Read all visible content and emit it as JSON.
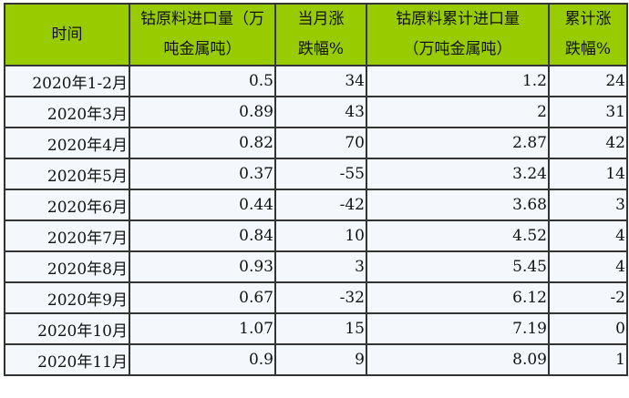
{
  "headers": [
    {
      "l1": "时间",
      "l2": ""
    },
    {
      "l1": "钴原料进口量（万",
      "l2": "吨金属吨）"
    },
    {
      "l1": "当月涨",
      "l2": "跌幅%"
    },
    {
      "l1": "钴原料累计进口量",
      "l2": "（万吨金属吨）"
    },
    {
      "l1": "累计涨",
      "l2": "跌幅%"
    }
  ],
  "rows": [
    [
      "2020年1-2月",
      "0.5",
      "34",
      "1.2",
      "24"
    ],
    [
      "2020年3月",
      "0.89",
      "43",
      "2",
      "31"
    ],
    [
      "2020年4月",
      "0.82",
      "70",
      "2.87",
      "42"
    ],
    [
      "2020年5月",
      "0.37",
      "-55",
      "3.24",
      "14"
    ],
    [
      "2020年6月",
      "0.44",
      "-42",
      "3.68",
      "3"
    ],
    [
      "2020年7月",
      "0.84",
      "10",
      "4.52",
      "4"
    ],
    [
      "2020年8月",
      "0.93",
      "3",
      "5.45",
      "4"
    ],
    [
      "2020年9月",
      "0.67",
      "-32",
      "6.12",
      "-2"
    ],
    [
      "2020年10月",
      "1.07",
      "15",
      "7.19",
      "0"
    ],
    [
      "2020年11月",
      "0.9",
      "9",
      "8.09",
      "1"
    ]
  ]
}
